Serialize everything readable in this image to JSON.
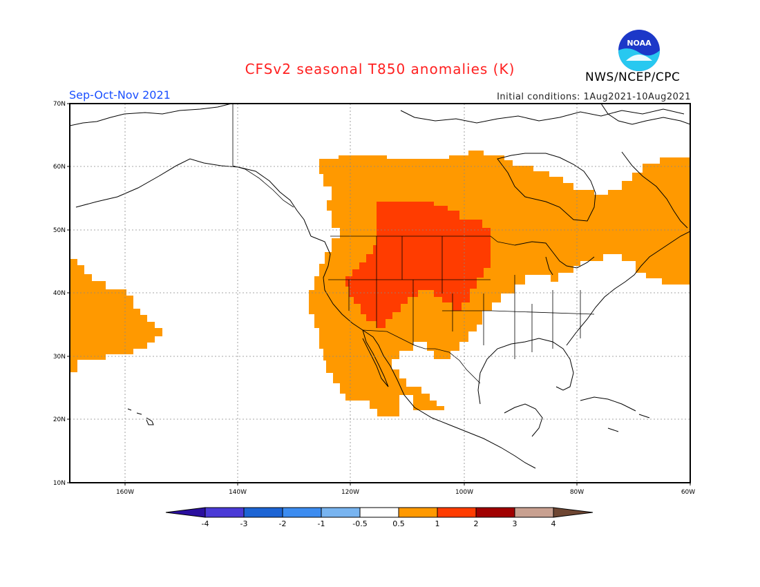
{
  "title": "CFSv2 seasonal T850 anomalies (K)",
  "agency": "NWS/NCEP/CPC",
  "logo_text": "NOAA",
  "season": "Sep-Oct-Nov 2021",
  "initial_conditions": "Initial conditions: 1Aug2021-10Aug2021",
  "map": {
    "projection": "latitude-longitude",
    "lon_range": [
      -172,
      -60
    ],
    "lat_range": [
      10,
      70
    ],
    "lon_ticks": [
      "160W",
      "140W",
      "120W",
      "100W",
      "80W",
      "60W"
    ],
    "lat_ticks": [
      "70N",
      "60N",
      "50N",
      "40N",
      "30N",
      "20N",
      "10N"
    ],
    "grid": "dotted"
  },
  "colorbar": {
    "labels": [
      "-4",
      "-3",
      "-2",
      "-1",
      "-0.5",
      "0.5",
      "1",
      "2",
      "3",
      "4"
    ],
    "colors": [
      "#2a0f9e",
      "#4a3ad6",
      "#1c64d4",
      "#3c8cf0",
      "#78b4f0",
      "#ffffff",
      "#ff9900",
      "#ff3c00",
      "#a00000",
      "#c8a090",
      "#6e4632"
    ]
  },
  "anomaly_regions": [
    {
      "level": "0.5-1",
      "color": "#ff9900",
      "area": "Central/Eastern Canada, Western US, Mexico, North Atlantic"
    },
    {
      "level": "0.5-1",
      "color": "#ff9900",
      "area": "Subtropical Eastern Pacific near Hawaii"
    },
    {
      "level": "1-2",
      "color": "#ff3c00",
      "area": "Northern Plains, Rockies, Great Basin, Southwest US"
    }
  ]
}
